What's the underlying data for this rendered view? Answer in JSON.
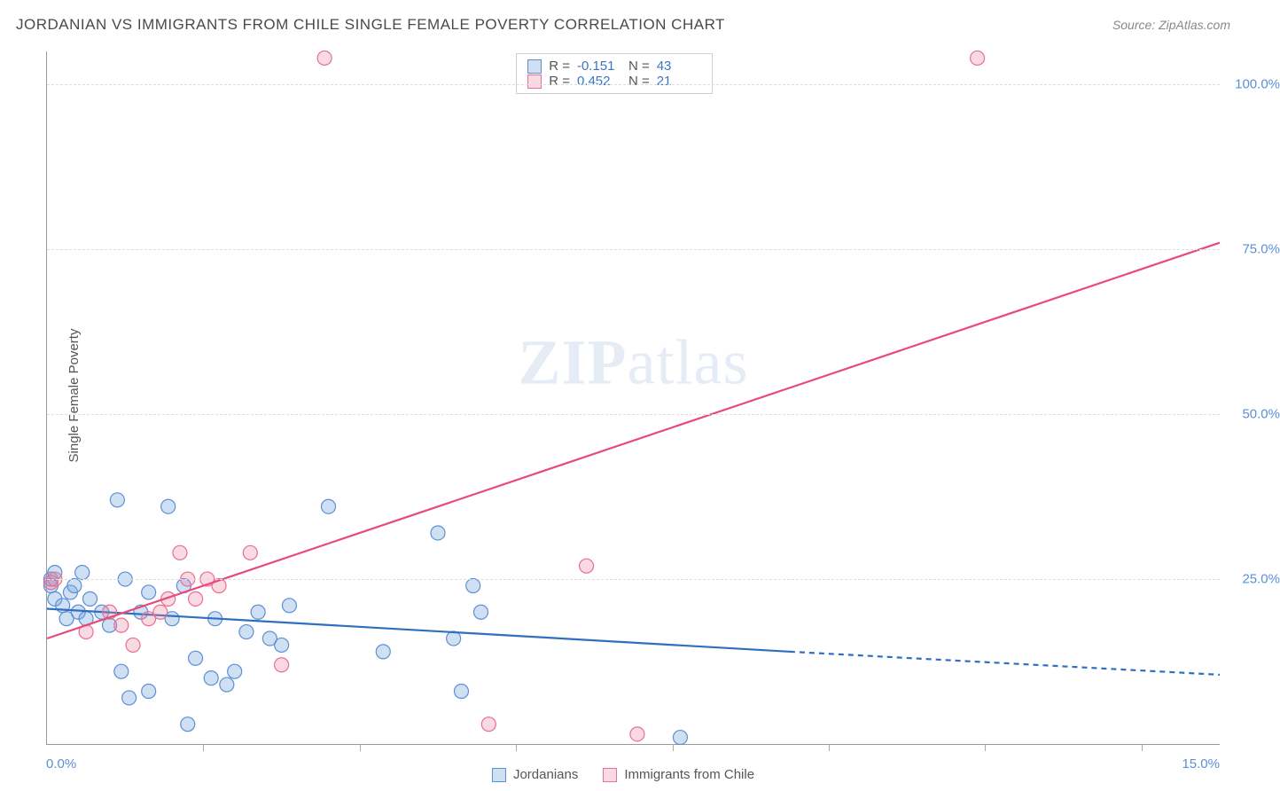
{
  "chart": {
    "type": "scatter",
    "title": "JORDANIAN VS IMMIGRANTS FROM CHILE SINGLE FEMALE POVERTY CORRELATION CHART",
    "source_label": "Source: ZipAtlas.com",
    "y_axis_label": "Single Female Poverty",
    "watermark_a": "ZIP",
    "watermark_b": "atlas",
    "xlim": [
      0,
      15
    ],
    "ylim": [
      0,
      105
    ],
    "x_ticks": [
      0,
      2,
      4,
      6,
      8,
      10,
      12,
      14
    ],
    "x_tick_labels": {
      "0": "0.0%",
      "15": "15.0%"
    },
    "y_ticks": [
      25,
      50,
      75,
      100
    ],
    "y_tick_labels": {
      "25": "25.0%",
      "50": "50.0%",
      "75": "75.0%",
      "100": "100.0%"
    },
    "background_color": "#ffffff",
    "grid_color": "#dddddd",
    "axis_color": "#999999",
    "tick_label_color": "#5b8fd6",
    "series": [
      {
        "name": "Jordanians",
        "color_fill": "rgba(120,165,220,0.35)",
        "color_stroke": "#5b8fd6",
        "marker_radius": 8,
        "R": "-0.151",
        "N": "43",
        "trend": {
          "x1": 0,
          "y1": 20.5,
          "x2": 9.5,
          "y2": 14.0,
          "x2_ext": 15,
          "y2_ext": 10.5,
          "color": "#2f6fc0",
          "width": 2.2
        },
        "points": [
          [
            0.05,
            24
          ],
          [
            0.05,
            25
          ],
          [
            0.1,
            22
          ],
          [
            0.1,
            26
          ],
          [
            0.2,
            21
          ],
          [
            0.25,
            19
          ],
          [
            0.3,
            23
          ],
          [
            0.35,
            24
          ],
          [
            0.4,
            20
          ],
          [
            0.45,
            26
          ],
          [
            0.5,
            19
          ],
          [
            0.55,
            22
          ],
          [
            0.7,
            20
          ],
          [
            0.8,
            18
          ],
          [
            0.9,
            37
          ],
          [
            0.95,
            11
          ],
          [
            1.0,
            25
          ],
          [
            1.05,
            7
          ],
          [
            1.2,
            20
          ],
          [
            1.3,
            23
          ],
          [
            1.3,
            8
          ],
          [
            1.55,
            36
          ],
          [
            1.6,
            19
          ],
          [
            1.75,
            24
          ],
          [
            1.8,
            3
          ],
          [
            1.9,
            13
          ],
          [
            2.1,
            10
          ],
          [
            2.15,
            19
          ],
          [
            2.3,
            9
          ],
          [
            2.4,
            11
          ],
          [
            2.55,
            17
          ],
          [
            2.7,
            20
          ],
          [
            2.85,
            16
          ],
          [
            3.0,
            15
          ],
          [
            3.1,
            21
          ],
          [
            3.6,
            36
          ],
          [
            4.3,
            14
          ],
          [
            5.0,
            32
          ],
          [
            5.2,
            16
          ],
          [
            5.3,
            8
          ],
          [
            5.45,
            24
          ],
          [
            5.55,
            20
          ],
          [
            8.1,
            1
          ]
        ]
      },
      {
        "name": "Immigrants from Chile",
        "color_fill": "rgba(235,130,160,0.30)",
        "color_stroke": "#e76f93",
        "marker_radius": 8,
        "R": "0.452",
        "N": "21",
        "trend": {
          "x1": 0,
          "y1": 16.0,
          "x2": 15,
          "y2": 76.0,
          "color": "#e84a7a",
          "width": 2.2
        },
        "points": [
          [
            0.05,
            24.5
          ],
          [
            0.1,
            25
          ],
          [
            0.5,
            17
          ],
          [
            0.8,
            20
          ],
          [
            0.95,
            18
          ],
          [
            1.1,
            15
          ],
          [
            1.3,
            19
          ],
          [
            1.45,
            20
          ],
          [
            1.55,
            22
          ],
          [
            1.7,
            29
          ],
          [
            1.8,
            25
          ],
          [
            1.9,
            22
          ],
          [
            2.05,
            25
          ],
          [
            2.2,
            24
          ],
          [
            2.6,
            29
          ],
          [
            3.0,
            12
          ],
          [
            3.55,
            104
          ],
          [
            5.65,
            3
          ],
          [
            6.9,
            27
          ],
          [
            7.55,
            1.5
          ],
          [
            11.9,
            104
          ]
        ]
      }
    ],
    "stats_labels": {
      "R": "R =",
      "N": "N ="
    },
    "legend_labels": [
      "Jordanians",
      "Immigrants from Chile"
    ]
  }
}
